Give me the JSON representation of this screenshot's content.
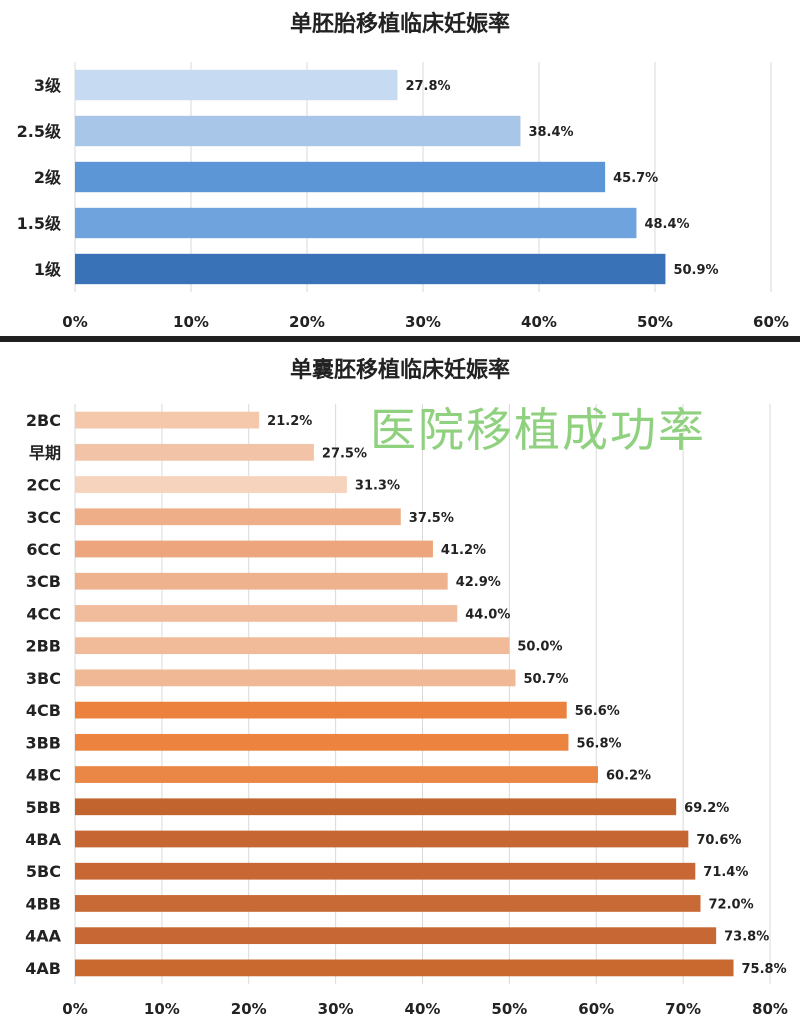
{
  "chart_data": [
    {
      "type": "bar",
      "orientation": "horizontal",
      "title": "单胚胎移植临床妊娠率",
      "categories": [
        "3级",
        "2.5级",
        "2级",
        "1.5级",
        "1级"
      ],
      "values": [
        27.8,
        38.4,
        45.7,
        48.4,
        50.9
      ],
      "value_labels": [
        "27.8%",
        "38.4%",
        "45.7%",
        "48.4%",
        "50.9%"
      ],
      "colors": [
        "#c6dbf2",
        "#a7c6e8",
        "#5d96d6",
        "#6ea3de",
        "#3a72b8"
      ],
      "xlim": [
        0,
        60
      ],
      "xticks": [
        "0%",
        "10%",
        "20%",
        "30%",
        "40%",
        "50%",
        "60%"
      ],
      "grid": true
    },
    {
      "type": "bar",
      "orientation": "horizontal",
      "title": "单囊胚移植临床妊娠率",
      "categories": [
        "2BC",
        "早期",
        "2CC",
        "3CC",
        "6CC",
        "3CB",
        "4CC",
        "2BB",
        "3BC",
        "4CB",
        "3BB",
        "4BC",
        "5BB",
        "4BA",
        "5BC",
        "4BB",
        "4AA",
        "4AB"
      ],
      "values": [
        21.2,
        27.5,
        31.3,
        37.5,
        41.2,
        42.9,
        44.0,
        50.0,
        50.7,
        56.6,
        56.8,
        60.2,
        69.2,
        70.6,
        71.4,
        72.0,
        73.8,
        75.8
      ],
      "value_labels": [
        "21.2%",
        "27.5%",
        "31.3%",
        "37.5%",
        "41.2%",
        "42.9%",
        "44.0%",
        "50.0%",
        "50.7%",
        "56.6%",
        "56.8%",
        "60.2%",
        "69.2%",
        "70.6%",
        "71.4%",
        "72.0%",
        "73.8%",
        "75.8%"
      ],
      "colors": [
        "#f5c7ab",
        "#f2c3a6",
        "#f6d3bd",
        "#eeae88",
        "#eca57d",
        "#efb28f",
        "#f1bc9c",
        "#f1bb9a",
        "#f0b894",
        "#ec813e",
        "#ec843f",
        "#ea8746",
        "#c1642e",
        "#c56633",
        "#c86733",
        "#c76a36",
        "#c76834",
        "#c9692f"
      ],
      "xlim": [
        0,
        80
      ],
      "xticks": [
        "0%",
        "10%",
        "20%",
        "30%",
        "40%",
        "50%",
        "60%",
        "70%",
        "80%"
      ],
      "grid": true
    }
  ],
  "watermark": "医院移植成功率"
}
